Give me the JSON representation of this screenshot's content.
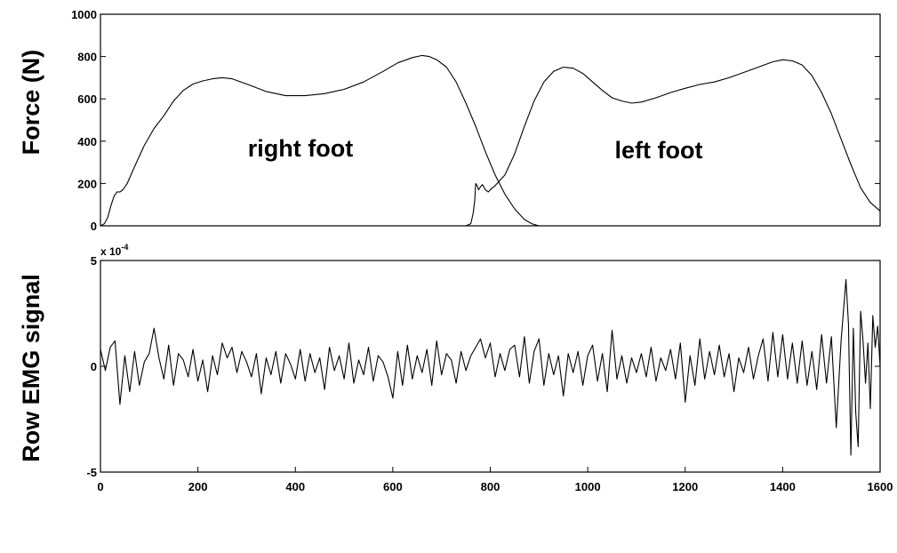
{
  "chart_data": [
    {
      "type": "line",
      "ylabel": "Force (N)",
      "xlim": [
        0,
        1600
      ],
      "ylim": [
        0,
        1000
      ],
      "yticks": [
        "0",
        "200",
        "400",
        "600",
        "800",
        "1000"
      ],
      "annotations": [
        "right foot",
        "left foot"
      ],
      "grid": false,
      "series": [
        {
          "x": [
            0,
            8,
            15,
            22,
            28,
            34,
            40,
            46,
            55,
            70,
            90,
            110,
            130,
            150,
            170,
            190,
            210,
            230,
            250,
            270,
            300,
            340,
            380,
            420,
            460,
            500,
            540,
            580,
            610,
            640,
            660,
            675,
            690,
            710,
            730,
            750,
            770,
            790,
            810,
            830,
            850,
            870,
            885,
            895,
            900
          ],
          "y": [
            0,
            10,
            40,
            100,
            140,
            160,
            160,
            170,
            200,
            280,
            380,
            460,
            520,
            590,
            640,
            670,
            685,
            695,
            700,
            695,
            670,
            635,
            615,
            615,
            625,
            645,
            680,
            730,
            770,
            795,
            805,
            800,
            785,
            750,
            680,
            580,
            470,
            350,
            240,
            150,
            80,
            30,
            10,
            3,
            0
          ]
        },
        {
          "x": [
            750,
            760,
            765,
            768,
            770,
            773,
            776,
            780,
            784,
            790,
            796,
            802,
            810,
            830,
            850,
            870,
            890,
            910,
            930,
            950,
            970,
            990,
            1010,
            1030,
            1050,
            1070,
            1090,
            1110,
            1140,
            1170,
            1200,
            1230,
            1260,
            1290,
            1320,
            1350,
            1380,
            1400,
            1420,
            1440,
            1460,
            1480,
            1500,
            1520,
            1540,
            1560,
            1580,
            1600
          ],
          "y": [
            0,
            10,
            60,
            120,
            200,
            190,
            170,
            185,
            195,
            170,
            160,
            175,
            190,
            240,
            340,
            470,
            590,
            680,
            730,
            750,
            745,
            720,
            680,
            640,
            605,
            590,
            580,
            585,
            605,
            630,
            650,
            668,
            680,
            700,
            725,
            750,
            775,
            785,
            780,
            760,
            710,
            630,
            530,
            410,
            290,
            180,
            110,
            70
          ]
        }
      ]
    },
    {
      "type": "line",
      "ylabel": "Row EMG signal",
      "xlim": [
        0,
        1600
      ],
      "ylim": [
        -5,
        5
      ],
      "yticks": [
        "-5",
        "0",
        "5"
      ],
      "xticks": [
        "0",
        "200",
        "400",
        "600",
        "800",
        "1000",
        "1200",
        "1400",
        "1600"
      ],
      "scale_prefix": "x 10",
      "scale_exponent": "-4",
      "grid": false,
      "series": [
        {
          "x": [
            0,
            10,
            20,
            30,
            40,
            50,
            60,
            70,
            80,
            90,
            100,
            110,
            120,
            130,
            140,
            150,
            160,
            170,
            180,
            190,
            200,
            210,
            220,
            230,
            240,
            250,
            260,
            270,
            280,
            290,
            300,
            310,
            320,
            330,
            340,
            350,
            360,
            370,
            380,
            390,
            400,
            410,
            420,
            430,
            440,
            450,
            460,
            470,
            480,
            490,
            500,
            510,
            520,
            530,
            540,
            550,
            560,
            570,
            580,
            590,
            600,
            610,
            620,
            630,
            640,
            650,
            660,
            670,
            680,
            690,
            700,
            710,
            720,
            730,
            740,
            750,
            760,
            770,
            780,
            790,
            800,
            810,
            820,
            830,
            840,
            850,
            860,
            870,
            880,
            890,
            900,
            910,
            920,
            930,
            940,
            950,
            960,
            970,
            980,
            990,
            1000,
            1010,
            1020,
            1030,
            1040,
            1050,
            1060,
            1070,
            1080,
            1090,
            1100,
            1110,
            1120,
            1130,
            1140,
            1150,
            1160,
            1170,
            1180,
            1190,
            1200,
            1210,
            1220,
            1230,
            1240,
            1250,
            1260,
            1270,
            1280,
            1290,
            1300,
            1310,
            1320,
            1330,
            1340,
            1350,
            1360,
            1370,
            1380,
            1390,
            1400,
            1410,
            1420,
            1430,
            1440,
            1450,
            1460,
            1470,
            1480,
            1490,
            1500,
            1510,
            1520,
            1530,
            1535,
            1540,
            1545,
            1550,
            1555,
            1560,
            1565,
            1570,
            1575,
            1580,
            1585,
            1590,
            1595,
            1600
          ],
          "y": [
            0.8,
            -0.2,
            0.9,
            1.2,
            -1.8,
            0.5,
            -1.2,
            0.7,
            -0.9,
            0.2,
            0.6,
            1.8,
            0.4,
            -0.6,
            1.0,
            -0.9,
            0.6,
            0.3,
            -0.5,
            0.8,
            -0.7,
            0.3,
            -1.2,
            0.5,
            -0.4,
            1.1,
            0.4,
            0.9,
            -0.3,
            0.7,
            0.2,
            -0.5,
            0.6,
            -1.3,
            0.4,
            -0.4,
            0.7,
            -0.8,
            0.6,
            0.1,
            -0.6,
            0.8,
            -0.7,
            0.6,
            -0.3,
            0.4,
            -1.1,
            0.9,
            -0.2,
            0.5,
            -0.6,
            1.1,
            -0.8,
            0.3,
            -0.4,
            0.9,
            -0.7,
            0.5,
            0.2,
            -0.5,
            -1.5,
            0.7,
            -0.9,
            1.0,
            -0.6,
            0.5,
            -0.3,
            0.8,
            -0.9,
            1.2,
            -0.4,
            0.6,
            0.3,
            -0.8,
            0.7,
            -0.2,
            0.5,
            0.9,
            1.3,
            0.4,
            1.1,
            -0.5,
            0.6,
            -0.2,
            0.8,
            1.0,
            -0.5,
            1.4,
            -0.8,
            0.7,
            1.3,
            -0.9,
            0.6,
            -0.4,
            0.5,
            -1.4,
            0.6,
            -0.3,
            0.7,
            -0.9,
            0.5,
            1.0,
            -0.7,
            0.6,
            -1.2,
            1.7,
            -0.6,
            0.5,
            -0.8,
            0.4,
            -0.3,
            0.6,
            -0.5,
            0.9,
            -0.7,
            0.4,
            -0.2,
            0.8,
            -0.6,
            1.1,
            -1.7,
            0.5,
            -0.9,
            1.3,
            -0.6,
            0.7,
            -0.4,
            1.0,
            -0.5,
            0.6,
            -1.2,
            0.4,
            -0.3,
            0.9,
            -0.6,
            0.5,
            1.3,
            -0.7,
            1.6,
            -0.5,
            1.5,
            -0.6,
            1.1,
            -0.8,
            1.2,
            -0.9,
            0.7,
            -1.1,
            1.5,
            -0.8,
            1.4,
            -2.9,
            1.2,
            4.1,
            2.0,
            -4.2,
            1.8,
            -2.2,
            -3.8,
            2.6,
            1.2,
            -0.8,
            1.1,
            -2.0,
            2.4,
            0.9,
            1.9,
            0.0
          ]
        }
      ]
    }
  ]
}
